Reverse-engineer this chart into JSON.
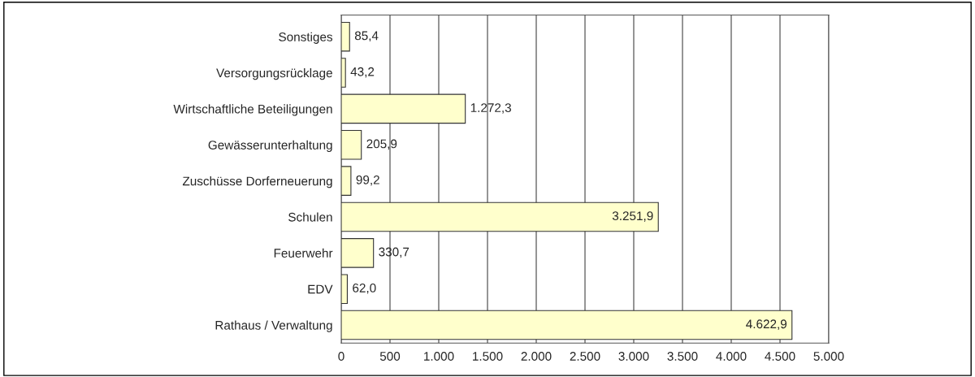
{
  "chart_data": {
    "type": "bar",
    "orientation": "horizontal",
    "categories": [
      "Sonstiges",
      "Versorgungsrücklage",
      "Wirtschaftliche Beteiligungen",
      "Gewässerunterhaltung",
      "Zuschüsse Dorferneuerung",
      "Schulen",
      "Feuerwehr",
      "EDV",
      "Rathaus / Verwaltung"
    ],
    "values": [
      85.4,
      43.2,
      1272.3,
      205.9,
      99.2,
      3251.9,
      330.7,
      62.0,
      4622.9
    ],
    "value_labels": [
      "85,4",
      "43,2",
      "1.272,3",
      "205,9",
      "99,2",
      "3.251,9",
      "330,7",
      "62,0",
      "4.622,9"
    ],
    "color": "#ffffcc",
    "xlim": [
      0,
      5000
    ],
    "xticks": [
      0,
      500,
      {
        "value": 1000,
        "label": "1.000"
      },
      {
        "value": 1500,
        "label": "1.500"
      },
      {
        "value": 2000,
        "label": "2.000"
      },
      {
        "value": 2500,
        "label": "2.500"
      },
      {
        "value": 3000,
        "label": "3.000"
      },
      {
        "value": 3500,
        "label": "3.500"
      },
      {
        "value": 4000,
        "label": "4.000"
      },
      {
        "value": 4500,
        "label": "4.500"
      },
      {
        "value": 5000,
        "label": "5.000"
      }
    ],
    "grid": "x",
    "legend": false
  }
}
